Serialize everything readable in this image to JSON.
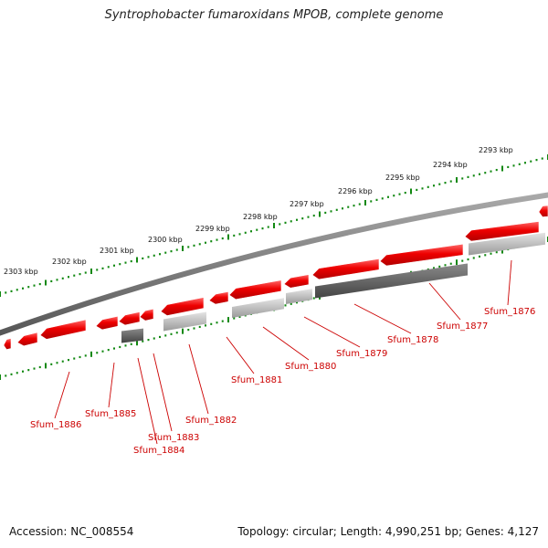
{
  "title": "Syntrophobacter fumaroxidans MPOB, complete genome",
  "accession": "Accession: NC_008554",
  "topology": "Topology: circular; Length: 4,990,251 bp; Genes: 4,127",
  "colors": {
    "backbone": "#7a7a7a",
    "forward_gene": "#ee0000",
    "reverse_gene_dark": "#555555",
    "reverse_gene_light": "#bbbbbb",
    "tick": "#118811",
    "label": "#cc0000"
  },
  "kbp_markers": [
    "2293 kbp",
    "2294 kbp",
    "2295 kbp",
    "2296 kbp",
    "2297 kbp",
    "2298 kbp",
    "2299 kbp",
    "2300 kbp",
    "2301 kbp",
    "2302 kbp",
    "2303 kbp"
  ],
  "gene_labels": [
    "Sfum_1876",
    "Sfum_1877",
    "Sfum_1878",
    "Sfum_1879",
    "Sfum_1880",
    "Sfum_1881",
    "Sfum_1882",
    "Sfum_1883",
    "Sfum_1884",
    "Sfum_1885",
    "Sfum_1886"
  ]
}
